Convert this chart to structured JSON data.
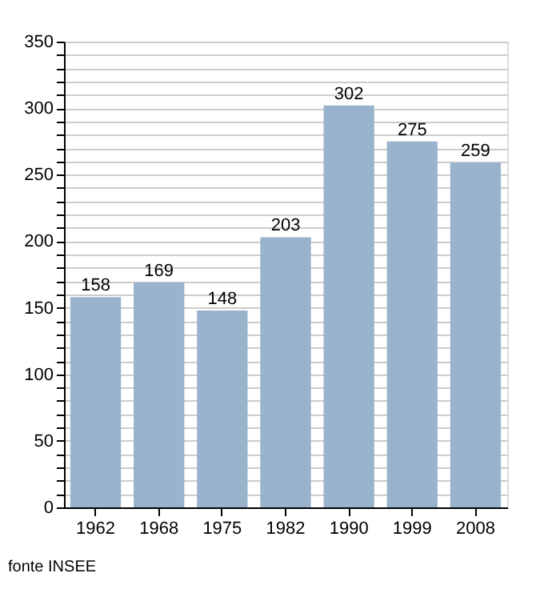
{
  "chart_data": {
    "type": "bar",
    "categories": [
      "1962",
      "1968",
      "1975",
      "1982",
      "1990",
      "1999",
      "2008"
    ],
    "values": [
      158,
      169,
      148,
      203,
      302,
      275,
      259
    ],
    "color": "#9ab3cc",
    "data_labels": true,
    "ylim": [
      0,
      350
    ],
    "yticks": [
      0,
      {
        "value": 10,
        "label": null
      },
      {
        "value": 20,
        "label": null
      },
      {
        "value": 30,
        "label": null
      },
      {
        "value": 40,
        "label": null
      },
      50,
      {
        "value": 60,
        "label": null
      },
      {
        "value": 70,
        "label": null
      },
      {
        "value": 80,
        "label": null
      },
      {
        "value": 90,
        "label": null
      },
      100,
      {
        "value": 110,
        "label": null
      },
      {
        "value": 120,
        "label": null
      },
      {
        "value": 130,
        "label": null
      },
      {
        "value": 140,
        "label": null
      },
      150,
      {
        "value": 160,
        "label": null
      },
      {
        "value": 170,
        "label": null
      },
      {
        "value": 180,
        "label": null
      },
      {
        "value": 190,
        "label": null
      },
      200,
      {
        "value": 210,
        "label": null
      },
      {
        "value": 220,
        "label": null
      },
      {
        "value": 230,
        "label": null
      },
      {
        "value": 240,
        "label": null
      },
      250,
      {
        "value": 260,
        "label": null
      },
      {
        "value": 270,
        "label": null
      },
      {
        "value": 280,
        "label": null
      },
      {
        "value": 290,
        "label": null
      },
      300,
      {
        "value": 310,
        "label": null
      },
      {
        "value": 320,
        "label": null
      },
      {
        "value": 330,
        "label": null
      },
      {
        "value": 340,
        "label": null
      },
      350
    ],
    "grid": "y",
    "annotations": [
      "fonte INSEE"
    ]
  }
}
